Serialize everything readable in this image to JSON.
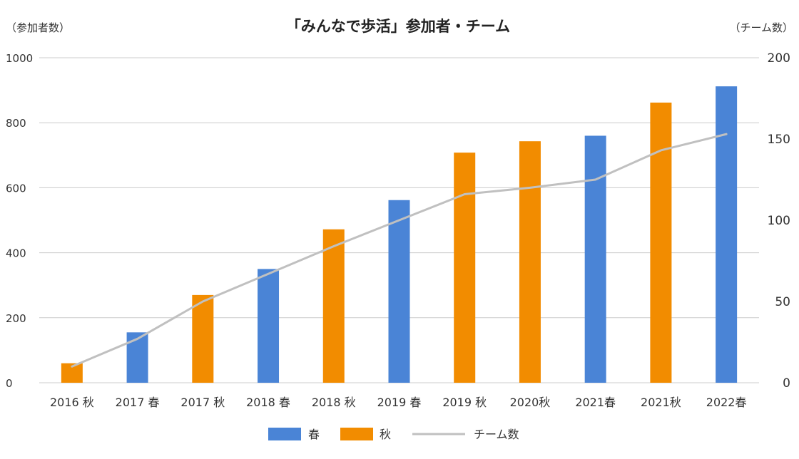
{
  "chart_data": {
    "type": "bar",
    "title": "「みんなで歩活」参加者・チーム",
    "y_left_label": "（参加者数）",
    "y_right_label": "（チーム数）",
    "categories": [
      "2016 秋",
      "2017 春",
      "2017 秋",
      "2018 春",
      "2018 秋",
      "2019 春",
      "2019 秋",
      "2020秋",
      "2021春",
      "2021秋",
      "2022春"
    ],
    "bar_values": [
      60,
      155,
      270,
      350,
      472,
      562,
      708,
      743,
      760,
      862,
      912
    ],
    "bar_seasons": [
      "秋",
      "春",
      "秋",
      "春",
      "秋",
      "春",
      "秋",
      "秋",
      "春",
      "秋",
      "春"
    ],
    "series": [
      {
        "name": "春",
        "type": "bar",
        "color": "#4A84D6"
      },
      {
        "name": "秋",
        "type": "bar",
        "color": "#F28C00"
      },
      {
        "name": "チーム数",
        "type": "line",
        "axis": "right",
        "color": "#C0C0C0",
        "values": [
          10,
          27,
          50,
          67,
          84,
          100,
          116,
          120,
          125,
          143,
          153
        ]
      }
    ],
    "y_left": {
      "min": 0,
      "max": 1000,
      "ticks": [
        0,
        200,
        400,
        600,
        800,
        1000
      ]
    },
    "y_right": {
      "min": 0,
      "max": 200,
      "ticks": [
        0,
        50,
        100,
        150,
        200
      ]
    },
    "grid": true,
    "legend_position": "bottom"
  }
}
